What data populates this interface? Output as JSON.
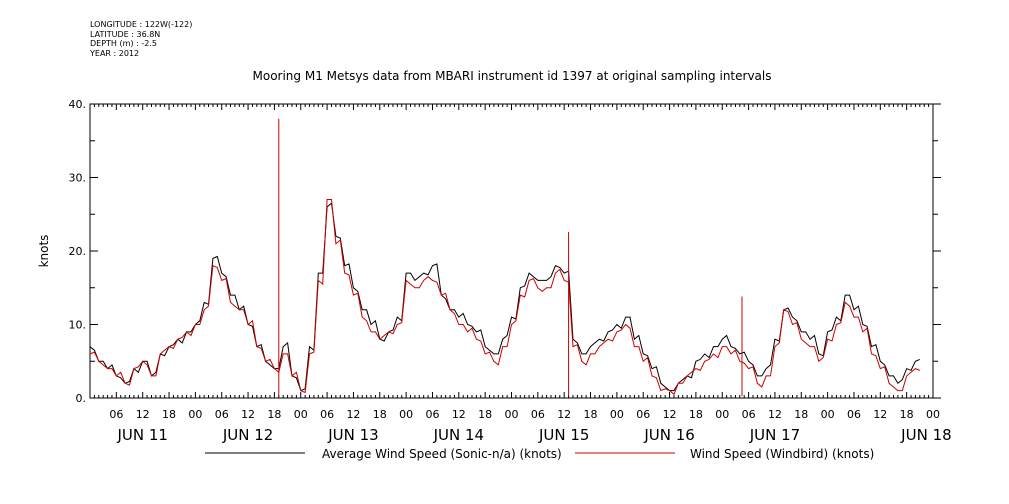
{
  "metadata": {
    "longitude": "LONGITUDE : 122W(-122)",
    "latitude": "LATITUDE : 36.8N",
    "depth": "DEPTH (m) : -2.5",
    "year": "YEAR : 2012"
  },
  "chart_data": {
    "type": "line",
    "title": "Mooring M1 Metsys data from MBARI instrument id 1397 at original sampling intervals",
    "ylabel": "knots",
    "xlabel": "",
    "ylim": [
      0,
      40
    ],
    "yticks": [
      "0.",
      "10.",
      "20.",
      "30.",
      "40."
    ],
    "xlim_hours": [
      0,
      192
    ],
    "hour_ticks": [
      "06",
      "12",
      "18",
      "00",
      "06",
      "12",
      "18",
      "00",
      "06",
      "12",
      "18",
      "00",
      "06",
      "12",
      "18",
      "00",
      "06",
      "12",
      "18",
      "00",
      "06",
      "12",
      "18",
      "00",
      "06",
      "12",
      "18",
      "00",
      "06",
      "12",
      "18",
      "00"
    ],
    "day_labels": [
      "JUN 11",
      "JUN 12",
      "JUN 13",
      "JUN 14",
      "JUN 15",
      "JUN 16",
      "JUN 17",
      "JUN 18"
    ],
    "x_unit_note": "hours after JUN 11 00:00",
    "series": [
      {
        "name": "Average Wind Speed (Sonic-n/a) (knots)",
        "color": "#000000",
        "x": [
          0,
          2,
          4,
          6,
          8,
          10,
          12,
          14,
          16,
          18,
          20,
          22,
          24,
          26,
          28,
          30,
          32,
          34,
          36,
          38,
          40,
          42,
          44,
          46,
          48,
          50,
          52,
          54,
          56,
          58,
          60,
          62,
          64,
          66,
          68,
          70,
          72,
          74,
          76,
          78,
          80,
          82,
          84,
          86,
          88,
          90,
          92,
          94,
          96,
          98,
          100,
          102,
          104,
          106,
          108,
          110,
          112,
          114,
          116,
          118,
          120,
          122,
          124,
          126,
          128,
          130,
          132,
          134,
          136,
          138,
          140,
          142,
          144,
          146,
          148,
          150,
          152,
          154,
          156,
          158,
          160,
          162,
          164,
          166,
          168,
          170,
          172,
          174,
          176,
          178,
          180,
          182,
          184,
          186,
          188
        ],
        "y": [
          7,
          5,
          4,
          3,
          2,
          4,
          5,
          3,
          6,
          7,
          8,
          9,
          10,
          13,
          19,
          17,
          14,
          12,
          10,
          7,
          5,
          4,
          7,
          3,
          1,
          7,
          17,
          26,
          22,
          18,
          15,
          12,
          10,
          8,
          9,
          11,
          17,
          16,
          17,
          18,
          14,
          12,
          11,
          10,
          9,
          7,
          6,
          8,
          11,
          15,
          17,
          16,
          16,
          18,
          17,
          8,
          6,
          7,
          8,
          9,
          10,
          11,
          8,
          6,
          4,
          2,
          1,
          2,
          3,
          5,
          6,
          7,
          8,
          7,
          6,
          5,
          3,
          4,
          8,
          12,
          11,
          9,
          8,
          6,
          9,
          11,
          14,
          12,
          10,
          7,
          5,
          3,
          2,
          4,
          5
        ]
      },
      {
        "name": "Wind Speed (Windbird) (knots)",
        "color": "#cc0000",
        "x": [
          0,
          2,
          4,
          6,
          8,
          10,
          12,
          14,
          16,
          18,
          20,
          22,
          24,
          26,
          28,
          30,
          32,
          34,
          36,
          38,
          40,
          42,
          44,
          46,
          48,
          50,
          52,
          54,
          56,
          58,
          60,
          62,
          64,
          66,
          68,
          70,
          72,
          74,
          76,
          78,
          80,
          82,
          84,
          86,
          88,
          90,
          92,
          94,
          96,
          98,
          100,
          102,
          104,
          106,
          108,
          110,
          112,
          114,
          116,
          118,
          120,
          122,
          124,
          126,
          128,
          130,
          132,
          134,
          136,
          138,
          140,
          142,
          144,
          146,
          148,
          150,
          152,
          154,
          156,
          158,
          160,
          162,
          164,
          166,
          168,
          170,
          172,
          174,
          176,
          178,
          180,
          182,
          184,
          186,
          188
        ],
        "y": [
          6,
          5,
          4,
          3,
          2,
          4,
          5,
          3,
          6,
          7,
          8,
          9,
          10,
          12,
          18,
          16,
          13,
          12,
          10,
          7,
          5,
          4,
          6,
          3,
          1,
          6,
          16,
          27,
          21,
          17,
          14,
          11,
          9,
          8,
          9,
          10,
          16,
          15,
          16,
          16,
          14,
          12,
          10,
          9,
          8,
          6,
          5,
          7,
          10,
          14,
          16,
          15,
          15,
          17,
          16,
          7,
          5,
          6,
          7,
          8,
          9,
          10,
          7,
          5,
          3,
          1,
          1,
          2,
          3,
          4,
          5,
          6,
          7,
          6,
          5,
          4,
          2,
          3,
          7,
          12,
          10,
          8,
          7,
          5,
          8,
          10,
          13,
          11,
          9,
          6,
          4,
          2,
          1,
          3,
          4
        ]
      }
    ],
    "spikes": [
      {
        "x": 43,
        "y": 38,
        "series": "Wind Speed (Windbird) (knots)"
      },
      {
        "x": 109,
        "y": 22.6,
        "series": "Wind Speed (Windbird) (knots)"
      },
      {
        "x": 148.5,
        "y": 13.8,
        "series": "Wind Speed (Windbird) (knots)"
      }
    ],
    "legend": {
      "placement": "bottom",
      "entries": [
        "Average Wind Speed (Sonic-n/a) (knots)",
        "Wind Speed (Windbird) (knots)"
      ]
    },
    "grid": false
  }
}
